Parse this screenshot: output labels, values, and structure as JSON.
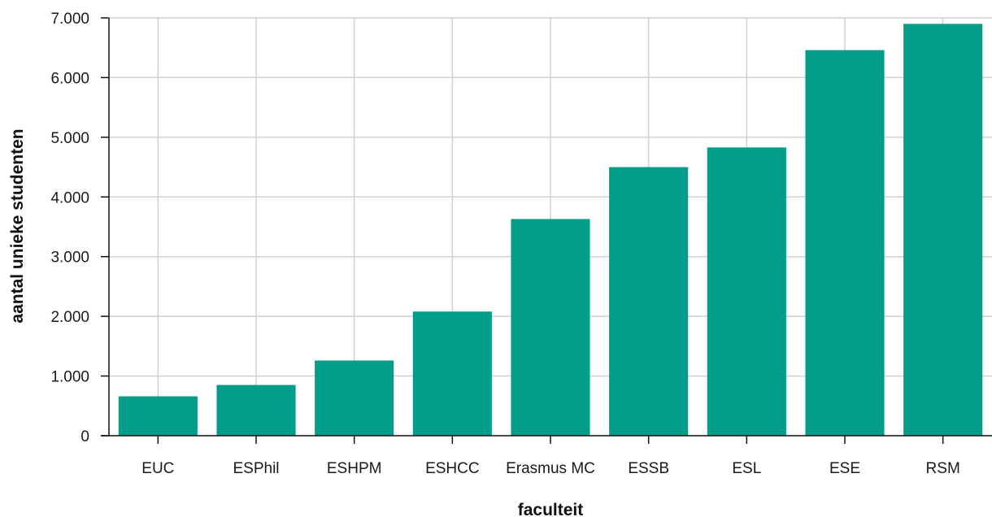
{
  "chart_data": {
    "type": "bar",
    "categories": [
      "EUC",
      "ESPhil",
      "ESHPM",
      "ESHCC",
      "Erasmus MC",
      "ESSB",
      "ESL",
      "ESE",
      "RSM"
    ],
    "values": [
      660,
      850,
      1260,
      2080,
      3630,
      4500,
      4830,
      6460,
      6900
    ],
    "xlabel": "faculteit",
    "ylabel": "aantal unieke studenten",
    "ylim": [
      0,
      7000
    ],
    "yticks": [
      0,
      1000,
      2000,
      3000,
      4000,
      5000,
      6000,
      7000
    ],
    "ytick_labels": [
      "0",
      "1.000",
      "2.000",
      "3.000",
      "4.000",
      "5.000",
      "6.000",
      "7.000"
    ],
    "grid": true,
    "bar_color": "#029e89",
    "grid_color": "#d0d0d0",
    "axis_color": "#111111"
  }
}
